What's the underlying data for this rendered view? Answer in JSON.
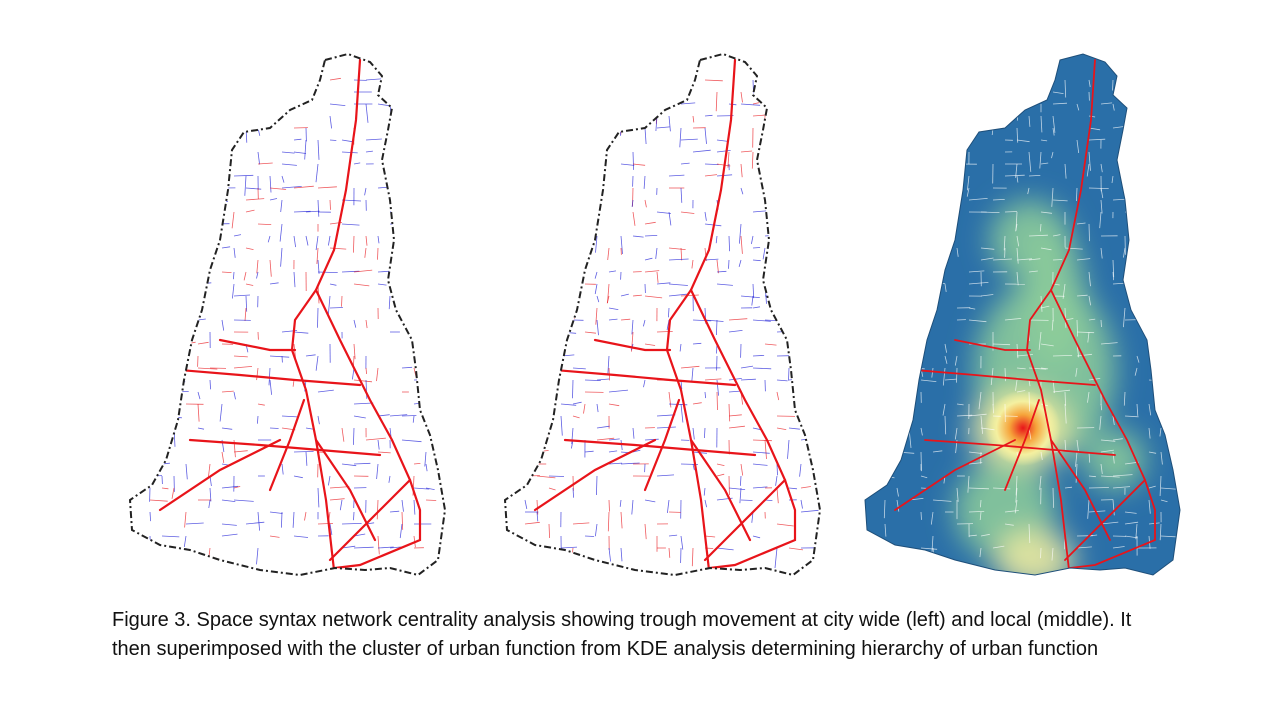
{
  "caption": "Figure 3. Space syntax network centrality analysis showing trough movement at city wide (left) and local (middle). It then superimposed with the cluster of urban function from KDE analysis determining hierarchy of urban function",
  "colors": {
    "high_centrality": "#e8141a",
    "low_centrality": "#1a1ad6",
    "boundary": "#222222",
    "kde_low": "#2a6fa8",
    "kde_mid": "#8fcf9a",
    "kde_high": "#f4f0a0",
    "kde_peak": "#e8141a"
  },
  "panels": [
    {
      "id": "city-wide",
      "position": "left",
      "style": "network"
    },
    {
      "id": "local",
      "position": "middle",
      "style": "network"
    },
    {
      "id": "kde-overlay",
      "position": "right",
      "style": "kde"
    }
  ]
}
